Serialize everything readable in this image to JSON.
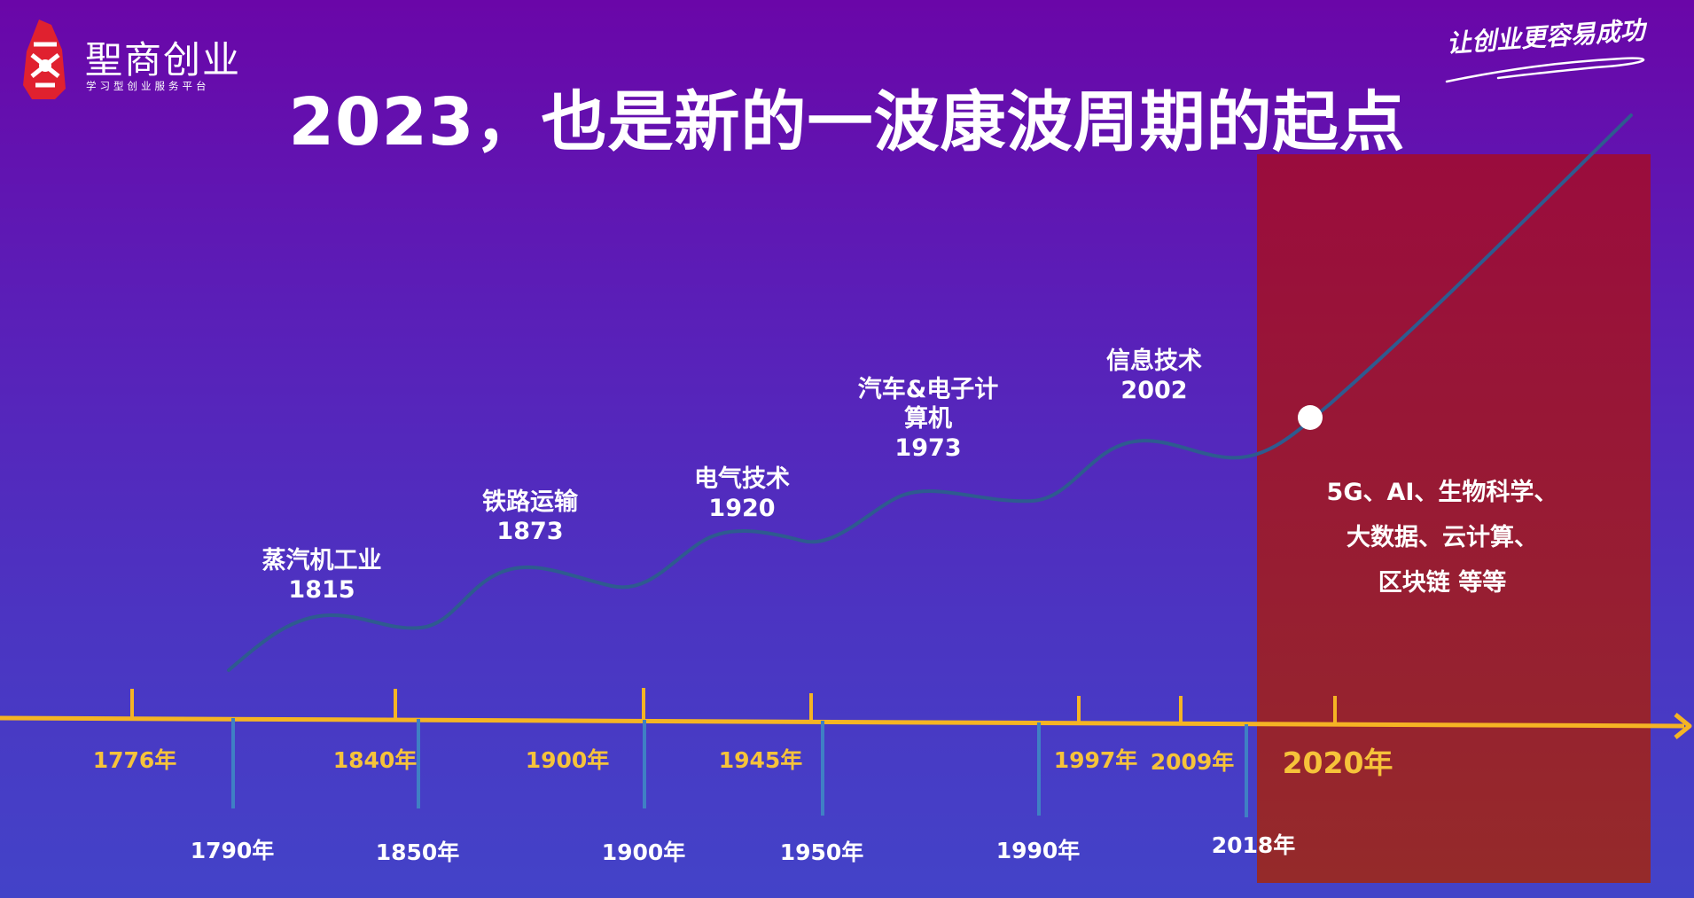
{
  "brand": {
    "name": "聖商创业",
    "tagline": "学习型创业服务平台",
    "slogan": "让创业更容易成功"
  },
  "title": "2023，也是新的一波康波周期的起点",
  "events": [
    {
      "name": "蒸汽机工业",
      "year": "1815"
    },
    {
      "name": "铁路运输",
      "year": "1873"
    },
    {
      "name": "电气技术",
      "year": "1920"
    },
    {
      "name": "汽车&电子计",
      "name2": "算机",
      "year": "1973"
    },
    {
      "name": "信息技术",
      "year": "2002"
    }
  ],
  "upper_ticks": [
    "1776年",
    "1840年",
    "1900年",
    "1945年",
    "1997年",
    "2009年",
    "2020年"
  ],
  "lower_ticks": [
    "1790年",
    "1850年",
    "1900年",
    "1950年",
    "1990年",
    "2018年"
  ],
  "current_tech": [
    "5G、AI、生物科学、",
    "大数据、云计算、",
    "区块链  等等"
  ],
  "colors": {
    "axis": "#f5b424",
    "upper_label": "#f6c33a",
    "lower_tick": "#3f80c4",
    "wave": "#2e5b8f",
    "highlight_panel": "#9b1c2b"
  }
}
